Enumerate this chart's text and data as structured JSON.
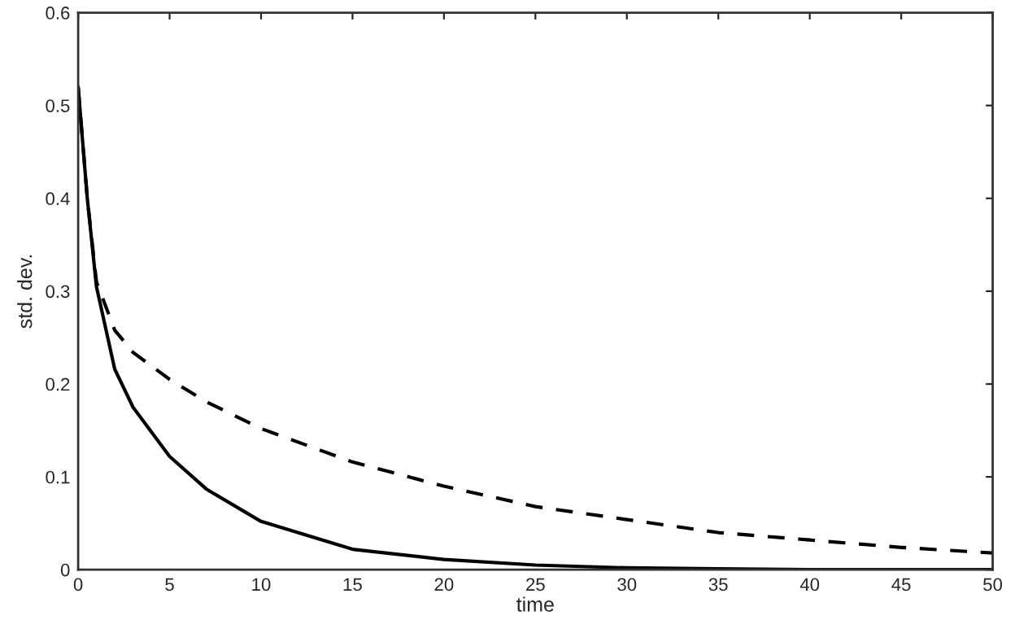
{
  "chart_data": {
    "type": "line",
    "xlabel": "time",
    "ylabel": "std. dev.",
    "xlim": [
      0,
      50
    ],
    "ylim": [
      0,
      0.6
    ],
    "xticks": [
      0,
      5,
      10,
      15,
      20,
      25,
      30,
      35,
      40,
      45,
      50
    ],
    "yticks": [
      0,
      0.1,
      0.2,
      0.3,
      0.4,
      0.5,
      0.6
    ],
    "grid": false,
    "legend": false,
    "marker": "none",
    "series": [
      {
        "color": "#000000",
        "line_style": "solid",
        "x": [
          0,
          0.5,
          1,
          2,
          3,
          5,
          7,
          10,
          15,
          20,
          25,
          30,
          35,
          40,
          45,
          50
        ],
        "values": [
          0.52,
          0.4,
          0.305,
          0.216,
          0.175,
          0.122,
          0.087,
          0.052,
          0.022,
          0.011,
          0.005,
          0.002,
          0.001,
          0,
          0,
          0
        ]
      },
      {
        "color": "#000000",
        "line_style": "dashed",
        "x": [
          0,
          0.5,
          1,
          2,
          3,
          5,
          7,
          10,
          15,
          20,
          25,
          30,
          35,
          40,
          45,
          50
        ],
        "values": [
          0.52,
          0.4,
          0.31,
          0.258,
          0.234,
          0.205,
          0.181,
          0.152,
          0.116,
          0.09,
          0.068,
          0.054,
          0.04,
          0.032,
          0.024,
          0.018
        ]
      }
    ]
  }
}
